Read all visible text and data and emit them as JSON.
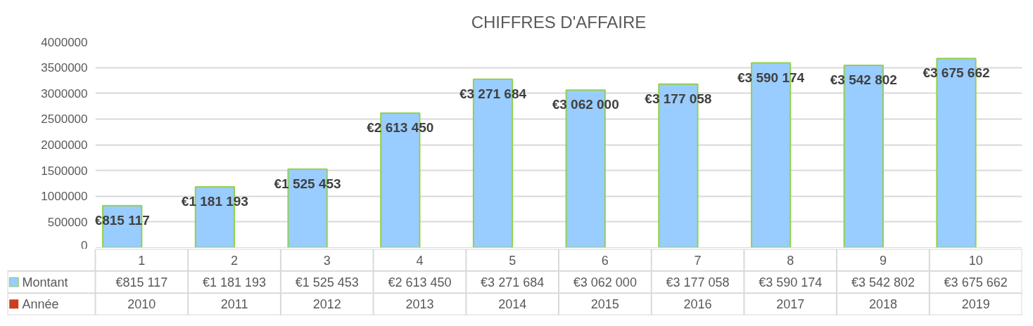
{
  "chart_data": {
    "type": "bar",
    "title": "CHIFFRES D'AFFAIRE",
    "categories": [
      "1",
      "2",
      "3",
      "4",
      "5",
      "6",
      "7",
      "8",
      "9",
      "10"
    ],
    "series": [
      {
        "name": "Montant",
        "color": "#99ccff",
        "values": [
          815117,
          1181193,
          1525453,
          2613450,
          3271684,
          3062000,
          3177058,
          3590174,
          3542802,
          3675662
        ],
        "value_labels": [
          "€815 117",
          "€1 181 193",
          "€1 525 453",
          "€2 613 450",
          "€3 271 684",
          "€3 062 000",
          "€3 177 058",
          "€3 590 174",
          "€3 542 802",
          "€3 675 662"
        ]
      },
      {
        "name": "Année",
        "color": "#c9401c",
        "values": [
          2010,
          2011,
          2012,
          2013,
          2014,
          2015,
          2016,
          2017,
          2018,
          2019
        ],
        "value_labels": [
          "2010",
          "2011",
          "2012",
          "2013",
          "2014",
          "2015",
          "2016",
          "2017",
          "2018",
          "2019"
        ]
      }
    ],
    "ylim": [
      0,
      4000000
    ],
    "yticks": [
      0,
      500000,
      1000000,
      1500000,
      2000000,
      2500000,
      3000000,
      3500000,
      4000000
    ],
    "grid": "y",
    "legend": "bottom left"
  }
}
